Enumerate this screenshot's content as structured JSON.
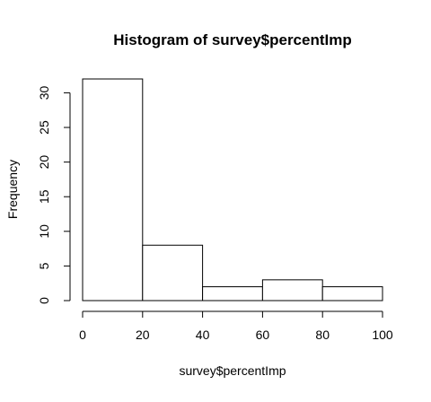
{
  "chart_data": {
    "type": "bar",
    "title": "Histogram of survey$percentImp",
    "xlabel": "survey$percentImp",
    "ylabel": "Frequency",
    "bins": [
      {
        "from": 0,
        "to": 20,
        "count": 32
      },
      {
        "from": 20,
        "to": 40,
        "count": 8
      },
      {
        "from": 40,
        "to": 60,
        "count": 2
      },
      {
        "from": 60,
        "to": 80,
        "count": 3
      },
      {
        "from": 80,
        "to": 100,
        "count": 2
      }
    ],
    "x_ticks": [
      0,
      20,
      40,
      60,
      80,
      100
    ],
    "y_ticks": [
      0,
      5,
      10,
      15,
      20,
      25,
      30
    ],
    "xlim": [
      0,
      100
    ],
    "ylim": [
      0,
      32
    ],
    "grid": false,
    "bar_fill": "#ffffff",
    "bar_stroke": "#000000"
  }
}
